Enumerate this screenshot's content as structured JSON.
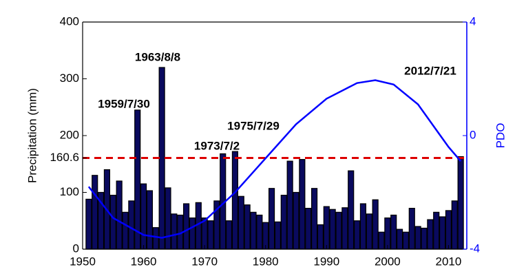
{
  "chart_data": {
    "type": "bar",
    "y_label": "Precipitation (mm)",
    "y2_label": "PDO",
    "categories": [
      1951,
      1952,
      1953,
      1954,
      1955,
      1956,
      1957,
      1958,
      1959,
      1960,
      1961,
      1962,
      1963,
      1964,
      1965,
      1966,
      1967,
      1968,
      1969,
      1970,
      1971,
      1972,
      1973,
      1974,
      1975,
      1976,
      1977,
      1978,
      1979,
      1980,
      1981,
      1982,
      1983,
      1984,
      1985,
      1986,
      1987,
      1988,
      1989,
      1990,
      1991,
      1992,
      1993,
      1994,
      1995,
      1996,
      1997,
      1998,
      1999,
      2000,
      2001,
      2002,
      2003,
      2004,
      2005,
      2006,
      2007,
      2008,
      2009,
      2010,
      2011,
      2012
    ],
    "values": [
      88,
      130,
      100,
      140,
      95,
      120,
      65,
      85,
      245,
      115,
      103,
      38,
      320,
      108,
      62,
      60,
      80,
      55,
      82,
      55,
      50,
      85,
      168,
      50,
      172,
      93,
      78,
      65,
      60,
      47,
      107,
      48,
      95,
      155,
      100,
      158,
      72,
      107,
      43,
      75,
      70,
      65,
      73,
      138,
      50,
      80,
      62,
      87,
      30,
      55,
      60,
      35,
      30,
      72,
      40,
      37,
      52,
      65,
      57,
      68,
      85,
      163
    ],
    "color": "#0a0a5e",
    "series": [
      {
        "name": "PDO",
        "axis": "y2",
        "color": "#0000ff",
        "x": [
          1951,
          1955,
          1960,
          1963,
          1966,
          1970,
          1975,
          1980,
          1985,
          1990,
          1995,
          1998,
          2001,
          2005,
          2008,
          2010,
          2012
        ],
        "values": [
          -1.8,
          -2.9,
          -3.5,
          -3.6,
          -3.45,
          -3.0,
          -2.0,
          -0.8,
          0.4,
          1.3,
          1.85,
          1.95,
          1.8,
          1.1,
          0.2,
          -0.4,
          -0.9
        ]
      }
    ],
    "threshold": 160.6,
    "threshold_color": "#dd0000",
    "annotations": [
      "1959/7/30",
      "1963/8/8",
      "1973/7/2",
      "1975/7/29",
      "2012/7/21"
    ],
    "xlim": [
      1950,
      2013
    ],
    "xticks": [
      1950,
      1960,
      1970,
      1980,
      1990,
      2000,
      2010
    ],
    "ylim": [
      0,
      400
    ],
    "yticks": [
      0,
      100,
      160.6,
      200,
      300,
      400
    ],
    "y2lim": [
      -4,
      4
    ],
    "y2ticks": [
      -4,
      0,
      4
    ]
  }
}
